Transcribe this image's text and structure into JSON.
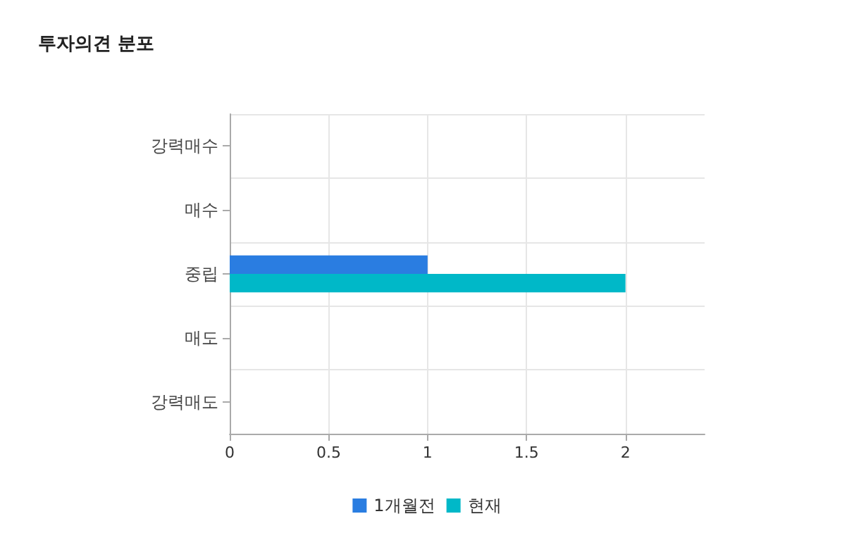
{
  "chart_data": {
    "type": "bar",
    "orientation": "horizontal",
    "title": "투자의견 분포",
    "categories": [
      "강력매수",
      "매수",
      "중립",
      "매도",
      "강력매도"
    ],
    "series": [
      {
        "name": "1개월전",
        "color": "#2a7de1",
        "values": [
          0,
          0,
          1,
          0,
          0
        ]
      },
      {
        "name": "현재",
        "color": "#00b8c8",
        "values": [
          0,
          0,
          2,
          0,
          0
        ]
      }
    ],
    "xlim": [
      0,
      2.4
    ],
    "xticks": [
      0,
      0.5,
      1,
      1.5,
      2
    ],
    "grid": true,
    "legend": "bottom"
  }
}
